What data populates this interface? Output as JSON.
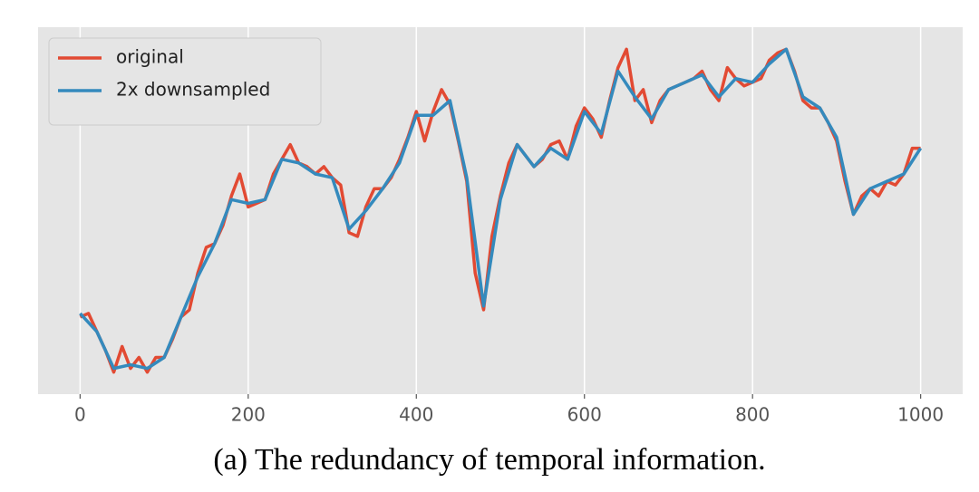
{
  "chart_data": {
    "type": "line",
    "caption": "(a) The redundancy of temporal information.",
    "legend": "upper left",
    "grid": true,
    "xlim": [
      -50,
      1050
    ],
    "ylim": [
      0,
      100
    ],
    "xticks": [
      0,
      200,
      400,
      600,
      800,
      1000
    ],
    "series": [
      {
        "name": "original",
        "color": "#e24a33",
        "x": [
          0,
          10,
          20,
          30,
          40,
          50,
          60,
          70,
          80,
          90,
          100,
          110,
          120,
          130,
          140,
          150,
          160,
          170,
          180,
          190,
          200,
          210,
          220,
          230,
          240,
          250,
          260,
          270,
          280,
          290,
          300,
          310,
          320,
          330,
          340,
          350,
          360,
          370,
          380,
          390,
          400,
          410,
          420,
          430,
          440,
          450,
          460,
          470,
          480,
          490,
          500,
          510,
          520,
          530,
          540,
          550,
          560,
          570,
          580,
          590,
          600,
          610,
          620,
          630,
          640,
          650,
          660,
          670,
          680,
          690,
          700,
          710,
          720,
          730,
          740,
          750,
          760,
          770,
          780,
          790,
          800,
          810,
          820,
          830,
          840,
          850,
          860,
          870,
          880,
          890,
          900,
          910,
          920,
          930,
          940,
          950,
          960,
          970,
          980,
          990,
          1000
        ],
        "values": [
          21,
          22,
          17,
          12,
          6,
          13,
          7,
          10,
          6,
          10,
          10,
          15,
          21,
          23,
          33,
          40,
          41,
          46,
          54,
          60,
          51,
          52,
          53,
          60,
          64,
          68,
          63,
          62,
          60,
          62,
          59,
          57,
          44,
          43,
          51,
          56,
          56,
          59,
          64,
          70,
          77,
          69,
          77,
          83,
          79,
          69,
          58,
          33,
          23,
          43,
          54,
          63,
          68,
          65,
          62,
          64,
          68,
          69,
          64,
          73,
          78,
          75,
          70,
          80,
          89,
          94,
          80,
          83,
          74,
          80,
          83,
          84,
          85,
          86,
          88,
          83,
          80,
          89,
          86,
          84,
          85,
          86,
          91,
          93,
          94,
          88,
          80,
          78,
          78,
          74,
          69,
          58,
          49,
          54,
          56,
          54,
          58,
          57,
          60,
          67,
          67
        ]
      },
      {
        "name": "2x downsampled",
        "color": "#348abd",
        "x": [
          0,
          20,
          40,
          60,
          80,
          100,
          120,
          140,
          160,
          180,
          200,
          220,
          240,
          260,
          280,
          300,
          320,
          340,
          360,
          380,
          400,
          420,
          440,
          460,
          480,
          500,
          520,
          540,
          560,
          580,
          600,
          620,
          640,
          660,
          680,
          700,
          720,
          740,
          760,
          780,
          800,
          820,
          840,
          860,
          880,
          900,
          920,
          940,
          960,
          980,
          1000
        ],
        "values": [
          22,
          17,
          7,
          8,
          7,
          10,
          21,
          32,
          41,
          53,
          52,
          53,
          64,
          63,
          60,
          59,
          45,
          50,
          56,
          63,
          76,
          76,
          80,
          59,
          24,
          53,
          68,
          62,
          67,
          64,
          77,
          71,
          88,
          81,
          75,
          83,
          85,
          87,
          81,
          86,
          85,
          90,
          94,
          81,
          78,
          70,
          49,
          56,
          58,
          60,
          67
        ]
      }
    ]
  }
}
